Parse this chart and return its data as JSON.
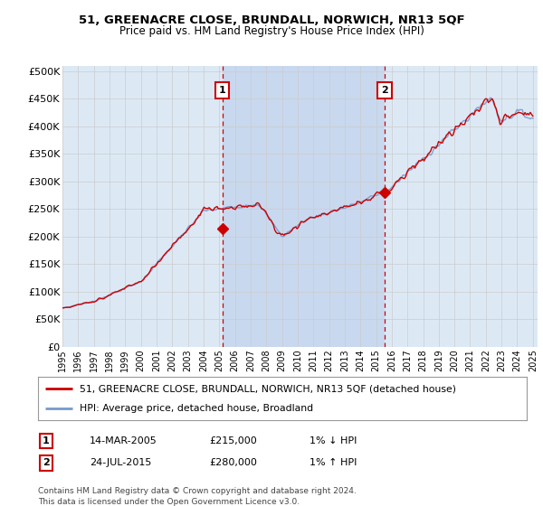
{
  "title1": "51, GREENACRE CLOSE, BRUNDALL, NORWICH, NR13 5QF",
  "title2": "Price paid vs. HM Land Registry's House Price Index (HPI)",
  "ylabel_ticks": [
    "£0",
    "£50K",
    "£100K",
    "£150K",
    "£200K",
    "£250K",
    "£300K",
    "£350K",
    "£400K",
    "£450K",
    "£500K"
  ],
  "ytick_values": [
    0,
    50000,
    100000,
    150000,
    200000,
    250000,
    300000,
    350000,
    400000,
    450000,
    500000
  ],
  "x_start_year": 1995,
  "x_end_year": 2025,
  "bg_color": "#dce9f5",
  "highlight_bg_color": "#c8d8ee",
  "line_color_property": "#cc0000",
  "line_color_hpi": "#7799cc",
  "marker1_year": 2005.2,
  "marker1_value": 215000,
  "marker2_year": 2015.55,
  "marker2_value": 280000,
  "legend_label1": "51, GREENACRE CLOSE, BRUNDALL, NORWICH, NR13 5QF (detached house)",
  "legend_label2": "HPI: Average price, detached house, Broadland",
  "annotation1_label": "1",
  "annotation1_date": "14-MAR-2005",
  "annotation1_price": "£215,000",
  "annotation1_hpi": "1% ↓ HPI",
  "annotation2_label": "2",
  "annotation2_date": "24-JUL-2015",
  "annotation2_price": "£280,000",
  "annotation2_hpi": "1% ↑ HPI",
  "footer": "Contains HM Land Registry data © Crown copyright and database right 2024.\nThis data is licensed under the Open Government Licence v3.0."
}
